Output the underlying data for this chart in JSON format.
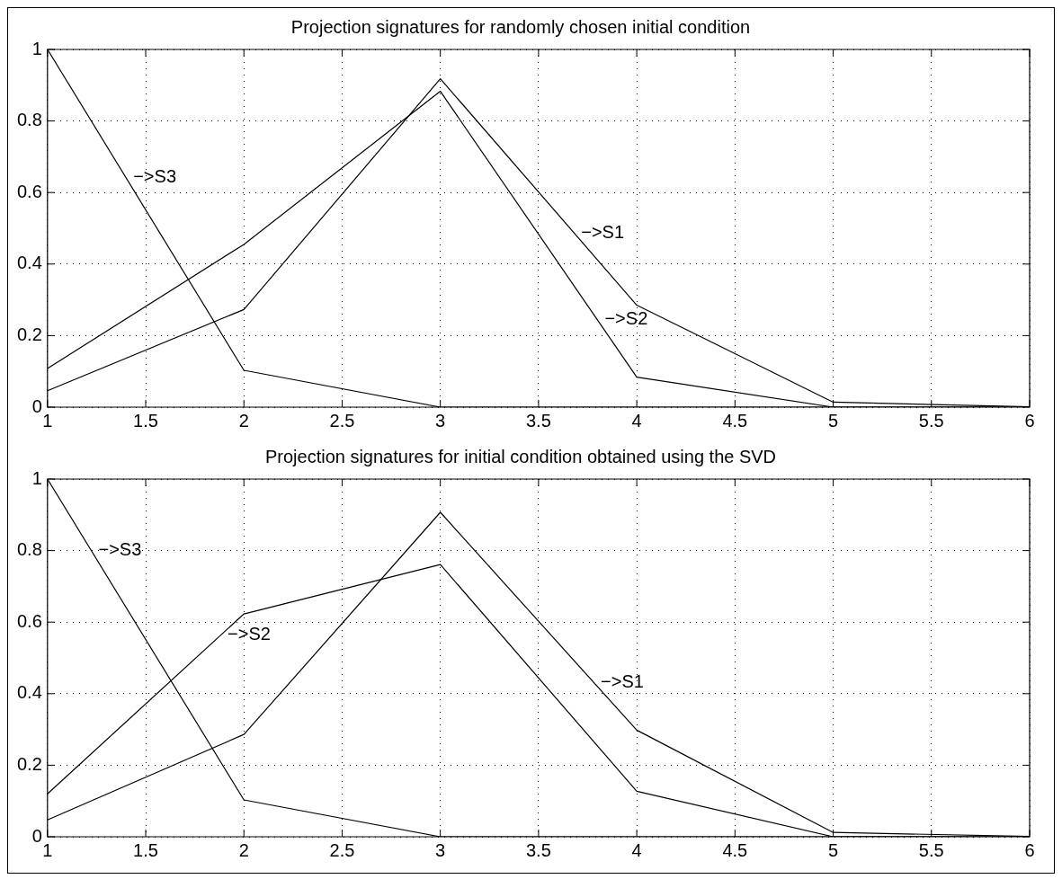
{
  "chart_data": [
    {
      "type": "line",
      "title": "Projection signatures for randomly chosen initial condition",
      "x": [
        1,
        2,
        3,
        4,
        5,
        6
      ],
      "series": [
        {
          "color": "#000000",
          "values": [
            0.046,
            0.273,
            0.918,
            0.285,
            0.014,
            0.001
          ]
        },
        {
          "color": "#000000",
          "values": [
            0.108,
            0.455,
            0.883,
            0.084,
            0,
            0
          ]
        },
        {
          "color": "#000000",
          "values": [
            1,
            0.103,
            0,
            0,
            0,
            0
          ]
        }
      ],
      "xlim": [
        1,
        6
      ],
      "xticks": [
        1,
        1.5,
        2,
        2.5,
        3,
        3.5,
        4,
        4.5,
        5,
        5.5,
        6
      ],
      "ylim": [
        0,
        1
      ],
      "yticks": [
        0,
        0.2,
        0.4,
        0.6,
        0.8,
        1
      ],
      "grid": true,
      "marker": "none",
      "line_style": "solid",
      "annotations": [
        {
          "text": "−>S1",
          "x": 3.68,
          "y": 0.487
        },
        {
          "text": "−>S2",
          "x": 3.8,
          "y": 0.244
        },
        {
          "text": "−>S3",
          "x": 1.4,
          "y": 0.641
        }
      ]
    },
    {
      "type": "line",
      "title": "Projection signatures for initial condition obtained using the SVD",
      "x": [
        1,
        2,
        3,
        4,
        5,
        6
      ],
      "series": [
        {
          "color": "#000000",
          "values": [
            0.047,
            0.286,
            0.907,
            0.298,
            0.012,
            0.001
          ]
        },
        {
          "color": "#000000",
          "values": [
            0.12,
            0.623,
            0.761,
            0.127,
            0,
            0
          ]
        },
        {
          "color": "#000000",
          "values": [
            1,
            0.103,
            0,
            0,
            0,
            0
          ]
        }
      ],
      "xlim": [
        1,
        6
      ],
      "xticks": [
        1,
        1.5,
        2,
        2.5,
        3,
        3.5,
        4,
        4.5,
        5,
        5.5,
        6
      ],
      "ylim": [
        0,
        1
      ],
      "yticks": [
        0,
        0.2,
        0.4,
        0.6,
        0.8,
        1
      ],
      "grid": true,
      "marker": "none",
      "line_style": "solid",
      "annotations": [
        {
          "text": "−>S1",
          "x": 3.78,
          "y": 0.432
        },
        {
          "text": "−>S2",
          "x": 1.88,
          "y": 0.563
        },
        {
          "text": "−>S3",
          "x": 1.223,
          "y": 0.8
        }
      ]
    }
  ]
}
